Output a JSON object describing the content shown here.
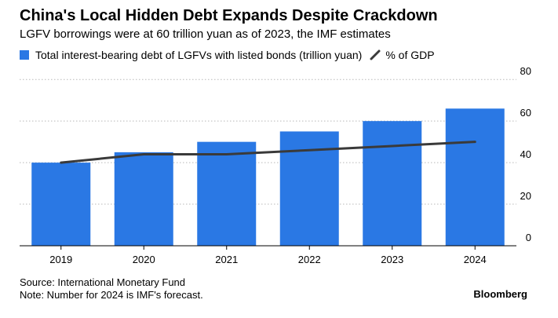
{
  "header": {
    "title": "China's Local Hidden Debt Expands Despite Crackdown",
    "subtitle": "LGFV borrowings were at 60 trillion yuan as of 2023, the IMF estimates"
  },
  "colors": {
    "bar": "#2a78e4",
    "line": "#3a3a3a",
    "grid": "#b8b8b8",
    "axis": "#000000"
  },
  "chart_data": {
    "type": "bar",
    "categories": [
      "2019",
      "2020",
      "2021",
      "2022",
      "2023",
      "2024"
    ],
    "series": [
      {
        "name": "Total interest-bearing debt of LGFVs with listed bonds (trillion yuan)",
        "type": "bar",
        "values": [
          40,
          45,
          50,
          55,
          60,
          66
        ]
      },
      {
        "name": "% of GDP",
        "type": "line",
        "values": [
          40,
          44,
          44,
          46,
          48,
          50
        ]
      }
    ],
    "yticks": [
      0,
      20,
      40,
      60,
      80
    ],
    "ylim": [
      0,
      85
    ],
    "grid": true,
    "legend": "top-left"
  },
  "footer": {
    "source": "Source: International Monetary Fund",
    "note": "Note: Number for 2024 is IMF's forecast.",
    "brand": "Bloomberg"
  }
}
